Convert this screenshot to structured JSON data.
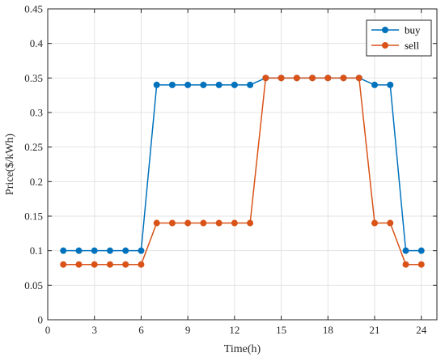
{
  "chart_data": {
    "type": "line",
    "xlabel": "Time(h)",
    "ylabel": "Price($/kWh)",
    "xlim": [
      0,
      25
    ],
    "ylim": [
      0,
      0.45
    ],
    "xticks": [
      0,
      3,
      6,
      9,
      12,
      15,
      18,
      21,
      24
    ],
    "yticks": [
      0,
      0.05,
      0.1,
      0.15,
      0.2,
      0.25,
      0.3,
      0.35,
      0.4,
      0.45
    ],
    "xtick_labels": [
      "0",
      "3",
      "6",
      "9",
      "12",
      "15",
      "18",
      "21",
      "24"
    ],
    "ytick_labels": [
      "0",
      "0.05",
      "0.1",
      "0.15",
      "0.2",
      "0.25",
      "0.3",
      "0.35",
      "0.4",
      "0.45"
    ],
    "grid": true,
    "legend_position": "top-right",
    "x": [
      1,
      2,
      3,
      4,
      5,
      6,
      7,
      8,
      9,
      10,
      11,
      12,
      13,
      14,
      15,
      16,
      17,
      18,
      19,
      20,
      21,
      22,
      23,
      24
    ],
    "series": [
      {
        "name": "buy",
        "color": "#0072BD",
        "values": [
          0.1,
          0.1,
          0.1,
          0.1,
          0.1,
          0.1,
          0.34,
          0.34,
          0.34,
          0.34,
          0.34,
          0.34,
          0.34,
          0.35,
          0.35,
          0.35,
          0.35,
          0.35,
          0.35,
          0.35,
          0.34,
          0.34,
          0.1,
          0.1
        ]
      },
      {
        "name": "sell",
        "color": "#D95319",
        "values": [
          0.08,
          0.08,
          0.08,
          0.08,
          0.08,
          0.08,
          0.14,
          0.14,
          0.14,
          0.14,
          0.14,
          0.14,
          0.14,
          0.35,
          0.35,
          0.35,
          0.35,
          0.35,
          0.35,
          0.35,
          0.14,
          0.14,
          0.08,
          0.08
        ]
      }
    ]
  }
}
